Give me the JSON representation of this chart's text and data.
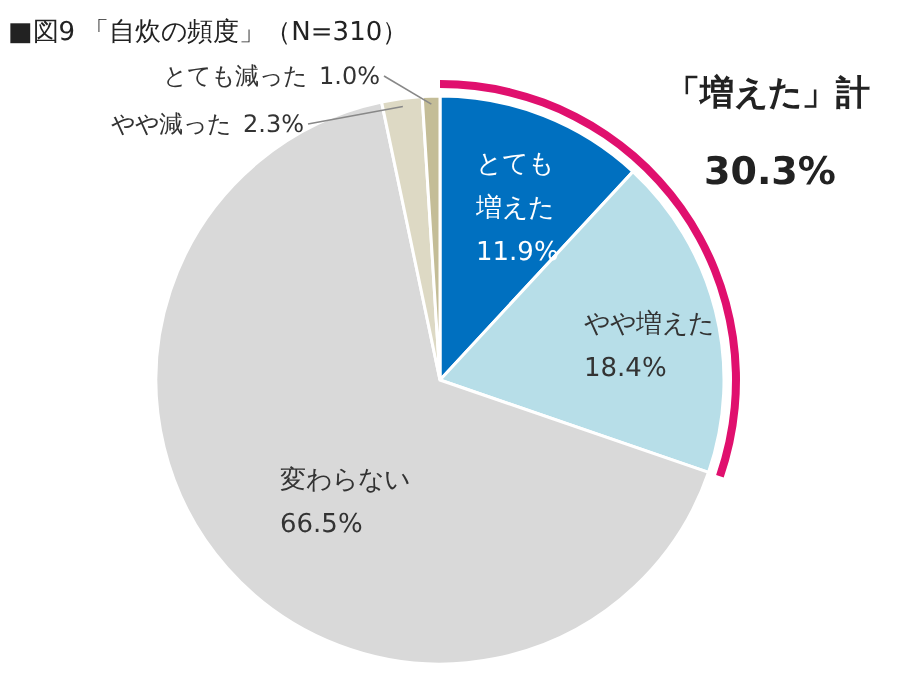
{
  "chart_data": {
    "type": "pie",
    "title": "■図9 「自炊の頻度」（N=310）",
    "categories": [
      "とても増えた",
      "やや増えた",
      "変わらない",
      "やや減った",
      "とても減った"
    ],
    "values": [
      11.9,
      18.4,
      66.5,
      2.3,
      1.0
    ],
    "colors": [
      "#0070c0",
      "#b7dee8",
      "#d9d9d9",
      "#ddd9c4",
      "#c4bd97"
    ],
    "value_labels": [
      "11.9%",
      "18.4%",
      "66.5%",
      "2.3%",
      "1.0%"
    ],
    "annotations": [
      "「増えた」計",
      "30.3%"
    ]
  }
}
